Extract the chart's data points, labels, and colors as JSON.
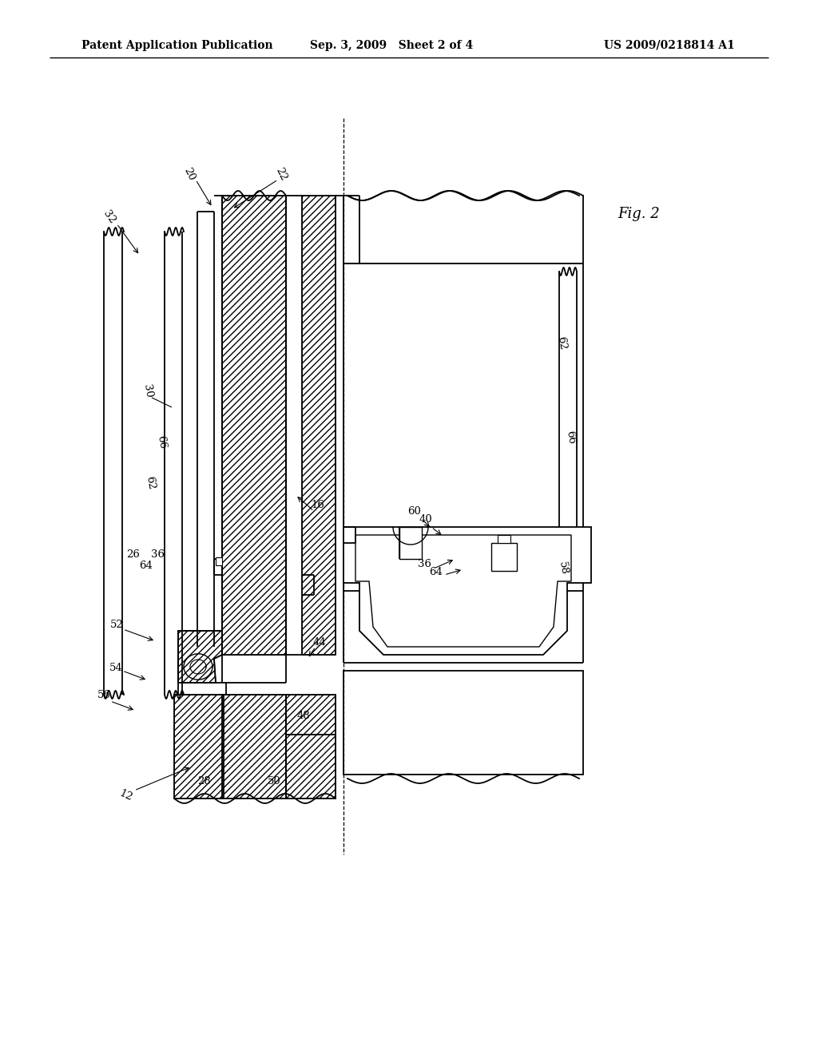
{
  "header_left": "Patent Application Publication",
  "header_mid": "Sep. 3, 2009   Sheet 2 of 4",
  "header_right": "US 2009/0218814 A1",
  "fig_label": "Fig. 2",
  "background_color": "#ffffff",
  "line_color": "#000000"
}
